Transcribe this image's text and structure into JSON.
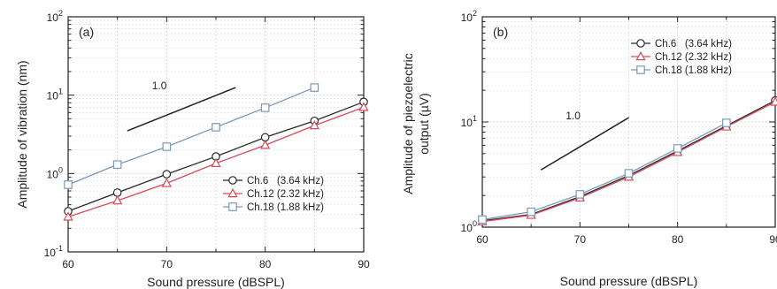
{
  "chart_data": [
    {
      "type": "line",
      "panel_label": "(a)",
      "xlabel": "Sound pressure (dBSPL)",
      "ylabel": "Amplitude of vibration (nm)",
      "xlim": [
        60,
        90
      ],
      "ylim": [
        0.1,
        100
      ],
      "yscale": "log",
      "x_ticks": [
        60,
        70,
        80,
        90
      ],
      "y_ticks": [
        {
          "value": 0.1,
          "base": "10",
          "exp": "-1"
        },
        {
          "value": 1,
          "base": "10",
          "exp": "0"
        },
        {
          "value": 10,
          "base": "10",
          "exp": "1"
        },
        {
          "value": 100,
          "base": "10",
          "exp": "2"
        }
      ],
      "legend_position": "lower-right",
      "series": [
        {
          "name": "Ch.6   (3.64 kHz)",
          "marker": "circle",
          "color": "#2a2a2a",
          "x": [
            60,
            65,
            70,
            75,
            80,
            85,
            90
          ],
          "y": [
            0.33,
            0.57,
            0.98,
            1.65,
            2.9,
            4.7,
            8.2
          ]
        },
        {
          "name": "Ch.12 (2.32 kHz)",
          "marker": "triangle",
          "color": "#d84a5a",
          "x": [
            60,
            65,
            70,
            75,
            80,
            85,
            90
          ],
          "y": [
            0.28,
            0.45,
            0.75,
            1.35,
            2.3,
            4.1,
            7.0
          ]
        },
        {
          "name": "Ch.18 (1.88 kHz)",
          "marker": "square",
          "color": "#7a9ab8",
          "x": [
            60,
            65,
            70,
            75,
            80,
            85
          ],
          "y": [
            0.72,
            1.3,
            2.2,
            3.9,
            6.9,
            12.5
          ]
        }
      ],
      "slope_indicator": {
        "label": "1.0",
        "x": [
          66,
          77
        ],
        "y": [
          3.5,
          12.5
        ]
      }
    },
    {
      "type": "line",
      "panel_label": "(b)",
      "xlabel": "Sound pressure (dBSPL)",
      "ylabel_lines": [
        "Amplitude of piezoelectric",
        "output (µV)"
      ],
      "xlim": [
        60,
        90
      ],
      "ylim": [
        1,
        100
      ],
      "yscale": "log",
      "x_ticks": [
        60,
        70,
        80,
        90
      ],
      "y_ticks": [
        {
          "value": 1,
          "base": "10",
          "exp": "0"
        },
        {
          "value": 10,
          "base": "10",
          "exp": "1"
        },
        {
          "value": 100,
          "base": "10",
          "exp": "2"
        }
      ],
      "legend_position": "top-right",
      "series": [
        {
          "name": "Ch.6   (3.64 kHz)",
          "marker": "circle",
          "color": "#2a2a2a",
          "x": [
            60,
            65,
            70,
            75,
            80,
            85,
            90
          ],
          "y": [
            1.15,
            1.32,
            1.95,
            3.1,
            5.3,
            9.2,
            16.0
          ]
        },
        {
          "name": "Ch.12 (2.32 kHz)",
          "marker": "triangle",
          "color": "#d84a5a",
          "x": [
            60,
            65,
            70,
            75,
            80,
            85,
            90
          ],
          "y": [
            1.13,
            1.3,
            1.9,
            3.0,
            5.15,
            9.0,
            15.5
          ]
        },
        {
          "name": "Ch.18 (1.88 kHz)",
          "marker": "square",
          "color": "#7a9ab8",
          "x": [
            60,
            65,
            70,
            75,
            80,
            85
          ],
          "y": [
            1.18,
            1.4,
            2.05,
            3.25,
            5.6,
            9.8
          ]
        }
      ],
      "slope_indicator": {
        "label": "1.0",
        "x": [
          66,
          75
        ],
        "y": [
          3.5,
          11.0
        ]
      }
    }
  ]
}
